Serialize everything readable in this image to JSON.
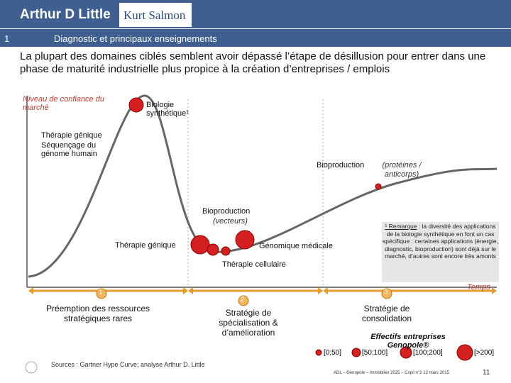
{
  "header": {
    "logo1": "Arthur D Little",
    "logo2": "Kurt Salmon",
    "section_number": "1",
    "section_title": "Diagnostic et principaux enseignements"
  },
  "headline": "La plupart des domaines ciblés semblent avoir dépassé l’étape de désillusion pour entrer dans une phase de maturité industrielle plus propice à la création d’entreprises / emplois",
  "diagram": {
    "y_axis_label": "Niveau de confiance du marché",
    "x_axis_label": "Temps",
    "labels": {
      "biologie": "Biologie synthétique¹",
      "therapie_genique_top": "Thérapie génique",
      "sequencage": "Séquençage du génome humain",
      "bioproduction_proteines": "Bioproduction",
      "bioproduction_proteines_detail": "(protéines / anticorps)",
      "bioproduction_vecteurs": "Bioproduction",
      "bioproduction_vecteurs_detail": "(vecteurs)",
      "therapie_genique": "Thérapie génique",
      "genomique": "Génomique médicale",
      "therapie_cellulaire": "Thérapie cellulaire"
    },
    "phases": [
      {
        "number": "1",
        "label": "Préemption des ressources stratégiques rares"
      },
      {
        "number": "2",
        "label": "Stratégie de spécialisation & d’amélioration"
      },
      {
        "number": "3",
        "label": "Stratégie de consolidation"
      }
    ],
    "note_title": "¹ Remarque",
    "note": ": la diversité des applications de la biologie synthétique en font un cas spécifique : certaines applications (énergie, diagnostic, bioproduction) sont déjà sur le marché, d’autres sont encore très amonts",
    "legend": {
      "title": "Effectifs entreprises Genopole®",
      "items": [
        "[0;50]",
        "[50;100]",
        "[100;200]",
        "[>200]"
      ]
    }
  },
  "footer": {
    "sources": "Sources : Gartner Hype Curve; analyse Arthur D. Little",
    "reference": "ADL – Genopole – Immobilier 2025 – Copil n°2 12 mars 2015",
    "page": "11"
  }
}
